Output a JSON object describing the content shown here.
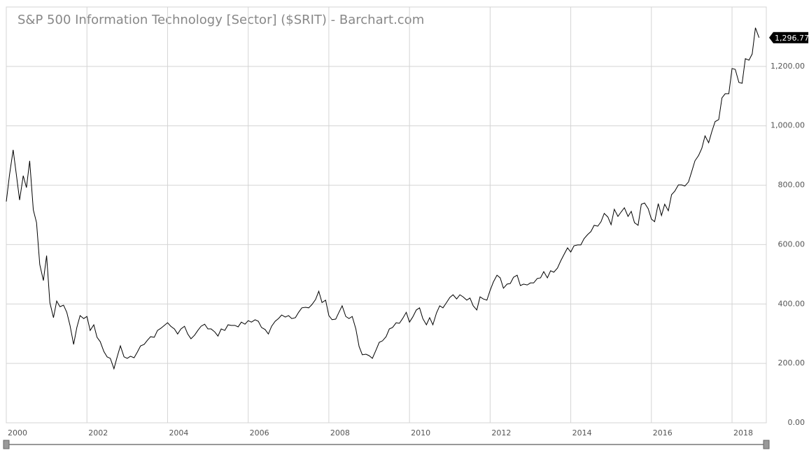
{
  "chart_data": {
    "type": "line",
    "title": "S&P 500 Information Technology [Sector] ($SRIT) - Barchart.com",
    "color": "#000000",
    "grid": true,
    "xlim": [
      2000,
      2018.85
    ],
    "xticks": [
      2000,
      2002,
      2004,
      2006,
      2008,
      2010,
      2012,
      2014,
      2016,
      2018
    ],
    "ylim": [
      0,
      1400
    ],
    "yticks": [
      {
        "value": 0,
        "label": "0.00"
      },
      {
        "value": 200,
        "label": "200.00"
      },
      {
        "value": 400,
        "label": "400.00"
      },
      {
        "value": 600,
        "label": "600.00"
      },
      {
        "value": 800,
        "label": "800.00"
      },
      {
        "value": 1000,
        "label": "1,000.00"
      },
      {
        "value": 1200,
        "label": "1,200.00"
      }
    ],
    "x": [
      2000,
      2000.08,
      2000.17,
      2000.25,
      2000.33,
      2000.42,
      2000.5,
      2000.58,
      2000.67,
      2000.75,
      2000.83,
      2000.92,
      2001,
      2001.08,
      2001.17,
      2001.25,
      2001.33,
      2001.42,
      2001.5,
      2001.58,
      2001.67,
      2001.75,
      2001.83,
      2001.92,
      2002,
      2002.08,
      2002.17,
      2002.25,
      2002.33,
      2002.42,
      2002.5,
      2002.58,
      2002.67,
      2002.75,
      2002.83,
      2002.92,
      2003,
      2003.08,
      2003.17,
      2003.25,
      2003.33,
      2003.42,
      2003.5,
      2003.58,
      2003.67,
      2003.75,
      2003.83,
      2003.92,
      2004,
      2004.08,
      2004.17,
      2004.25,
      2004.33,
      2004.42,
      2004.5,
      2004.58,
      2004.67,
      2004.75,
      2004.83,
      2004.92,
      2005,
      2005.08,
      2005.17,
      2005.25,
      2005.33,
      2005.42,
      2005.5,
      2005.58,
      2005.67,
      2005.75,
      2005.83,
      2005.92,
      2006,
      2006.08,
      2006.17,
      2006.25,
      2006.33,
      2006.42,
      2006.5,
      2006.58,
      2006.67,
      2006.75,
      2006.83,
      2006.92,
      2007,
      2007.08,
      2007.17,
      2007.25,
      2007.33,
      2007.42,
      2007.5,
      2007.58,
      2007.67,
      2007.75,
      2007.83,
      2007.92,
      2008,
      2008.08,
      2008.17,
      2008.25,
      2008.33,
      2008.42,
      2008.5,
      2008.58,
      2008.67,
      2008.75,
      2008.83,
      2008.92,
      2009,
      2009.08,
      2009.17,
      2009.25,
      2009.33,
      2009.42,
      2009.5,
      2009.58,
      2009.67,
      2009.75,
      2009.83,
      2009.92,
      2010,
      2010.08,
      2010.17,
      2010.25,
      2010.33,
      2010.42,
      2010.5,
      2010.58,
      2010.67,
      2010.75,
      2010.83,
      2010.92,
      2011,
      2011.08,
      2011.17,
      2011.25,
      2011.33,
      2011.42,
      2011.5,
      2011.58,
      2011.67,
      2011.75,
      2011.83,
      2011.92,
      2012,
      2012.08,
      2012.17,
      2012.25,
      2012.33,
      2012.42,
      2012.5,
      2012.58,
      2012.67,
      2012.75,
      2012.83,
      2012.92,
      2013,
      2013.08,
      2013.17,
      2013.25,
      2013.33,
      2013.42,
      2013.5,
      2013.58,
      2013.67,
      2013.75,
      2013.83,
      2013.92,
      2014,
      2014.08,
      2014.17,
      2014.25,
      2014.33,
      2014.42,
      2014.5,
      2014.58,
      2014.67,
      2014.75,
      2014.83,
      2014.92,
      2015,
      2015.08,
      2015.17,
      2015.25,
      2015.33,
      2015.42,
      2015.5,
      2015.58,
      2015.67,
      2015.75,
      2015.83,
      2015.92,
      2016,
      2016.08,
      2016.17,
      2016.25,
      2016.33,
      2016.42,
      2016.5,
      2016.58,
      2016.67,
      2016.75,
      2016.83,
      2016.92,
      2017,
      2017.08,
      2017.17,
      2017.25,
      2017.33,
      2017.42,
      2017.5,
      2017.58,
      2017.67,
      2017.75,
      2017.83,
      2017.92,
      2018,
      2018.08,
      2018.17,
      2018.25,
      2018.33,
      2018.42,
      2018.5,
      2018.58,
      2018.67
    ],
    "values": [
      745,
      835,
      919,
      835,
      750,
      832,
      792,
      882,
      717,
      674,
      533,
      479,
      563,
      405,
      354,
      410,
      391,
      396,
      372,
      328,
      264,
      321,
      361,
      351,
      358,
      311,
      330,
      288,
      273,
      240,
      222,
      217,
      182,
      222,
      259,
      222,
      217,
      224,
      219,
      238,
      259,
      264,
      278,
      290,
      288,
      311,
      318,
      328,
      337,
      325,
      316,
      299,
      316,
      325,
      299,
      283,
      295,
      311,
      325,
      332,
      316,
      316,
      306,
      292,
      316,
      311,
      330,
      328,
      328,
      323,
      339,
      332,
      344,
      339,
      347,
      342,
      321,
      314,
      299,
      325,
      342,
      351,
      363,
      356,
      361,
      351,
      354,
      372,
      387,
      389,
      387,
      398,
      415,
      443,
      405,
      413,
      361,
      347,
      349,
      372,
      394,
      358,
      351,
      358,
      316,
      257,
      229,
      231,
      226,
      217,
      245,
      271,
      276,
      290,
      316,
      321,
      337,
      335,
      351,
      372,
      339,
      356,
      380,
      387,
      351,
      330,
      354,
      330,
      370,
      394,
      387,
      405,
      422,
      431,
      417,
      431,
      424,
      413,
      420,
      394,
      380,
      424,
      417,
      413,
      446,
      474,
      497,
      488,
      453,
      467,
      469,
      490,
      497,
      462,
      467,
      464,
      471,
      471,
      486,
      488,
      509,
      488,
      512,
      507,
      521,
      545,
      566,
      589,
      575,
      596,
      599,
      599,
      620,
      634,
      644,
      665,
      662,
      677,
      705,
      693,
      667,
      719,
      695,
      710,
      724,
      695,
      712,
      674,
      665,
      736,
      740,
      721,
      686,
      677,
      738,
      698,
      736,
      714,
      768,
      780,
      801,
      801,
      797,
      811,
      846,
      882,
      900,
      924,
      966,
      943,
      981,
      1014,
      1021,
      1094,
      1108,
      1108,
      1193,
      1190,
      1146,
      1143,
      1226,
      1221,
      1242,
      1330,
      1296.77
    ],
    "value_labels": [
      null,
      null,
      null,
      null,
      null,
      null,
      null,
      null,
      null,
      null,
      null,
      null,
      null,
      null,
      null,
      null,
      null,
      null,
      null,
      null,
      null,
      null,
      null,
      null,
      null,
      null,
      null,
      null,
      null,
      null,
      null,
      null,
      null,
      null,
      null,
      null,
      null,
      null,
      null,
      null,
      null,
      null,
      null,
      null,
      null,
      null,
      null,
      null,
      null,
      null,
      null,
      null,
      null,
      null,
      null,
      null,
      null,
      null,
      null,
      null,
      null,
      null,
      null,
      null,
      null,
      null,
      null,
      null,
      null,
      null,
      null,
      null,
      null,
      null,
      null,
      null,
      null,
      null,
      null,
      null,
      null,
      null,
      null,
      null,
      null,
      null,
      null,
      null,
      null,
      null,
      null,
      null,
      null,
      null,
      null,
      null,
      null,
      null,
      null,
      null,
      null,
      null,
      null,
      null,
      null,
      null,
      null,
      null,
      null,
      null,
      null,
      null,
      null,
      null,
      null,
      null,
      null,
      null,
      null,
      null,
      null,
      null,
      null,
      null,
      null,
      null,
      null,
      null,
      null,
      null,
      null,
      null,
      null,
      null,
      null,
      null,
      null,
      null,
      null,
      null,
      null,
      null,
      null,
      null,
      null,
      null,
      null,
      null,
      null,
      null,
      null,
      null,
      null,
      null,
      null,
      null,
      null,
      null,
      null,
      null,
      null,
      null,
      null,
      null,
      null,
      null,
      null,
      null,
      null,
      null,
      null,
      null,
      null,
      null,
      null,
      null,
      null,
      null,
      null,
      null,
      null,
      null,
      null,
      null,
      null,
      null,
      null,
      null,
      null,
      null,
      null,
      null,
      null,
      null,
      null,
      null,
      null,
      null,
      null,
      null,
      null,
      null,
      null,
      null,
      null,
      null,
      null,
      null,
      null,
      null,
      null,
      null,
      null,
      null,
      null,
      null,
      null,
      null,
      null,
      null,
      null,
      null,
      null,
      null,
      "1,296.77"
    ]
  }
}
